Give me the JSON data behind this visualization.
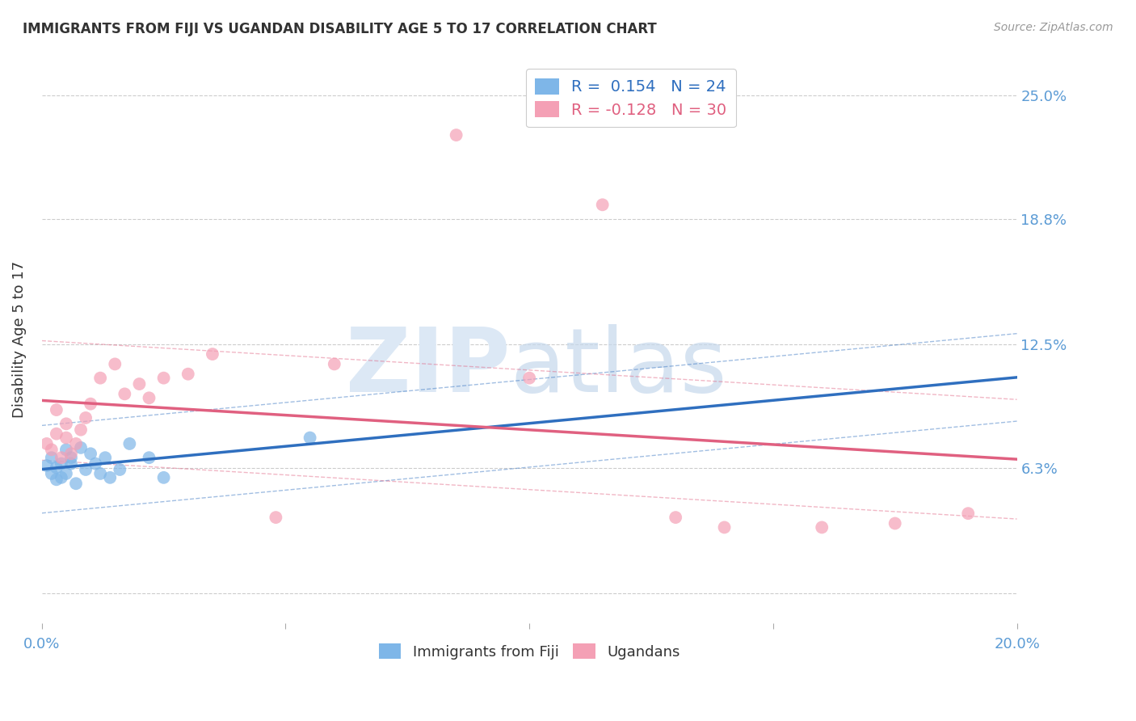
{
  "title": "IMMIGRANTS FROM FIJI VS UGANDAN DISABILITY AGE 5 TO 17 CORRELATION CHART",
  "source": "Source: ZipAtlas.com",
  "ylabel": "Disability Age 5 to 17",
  "xlim": [
    0.0,
    0.2
  ],
  "ylim": [
    -0.015,
    0.27
  ],
  "fiji_R": 0.154,
  "fiji_N": 24,
  "uganda_R": -0.128,
  "uganda_N": 30,
  "fiji_color": "#7EB6E8",
  "uganda_color": "#F4A0B5",
  "fiji_line_color": "#2F6FBF",
  "uganda_line_color": "#E06080",
  "background_color": "#FFFFFF",
  "ytick_positions": [
    0.0,
    0.063,
    0.125,
    0.188,
    0.25
  ],
  "ytick_labels": [
    "",
    "6.3%",
    "12.5%",
    "18.8%",
    "25.0%"
  ],
  "fiji_x": [
    0.001,
    0.002,
    0.002,
    0.003,
    0.003,
    0.004,
    0.004,
    0.005,
    0.005,
    0.006,
    0.006,
    0.007,
    0.008,
    0.009,
    0.01,
    0.011,
    0.012,
    0.013,
    0.014,
    0.016,
    0.018,
    0.022,
    0.025,
    0.055
  ],
  "fiji_y": [
    0.064,
    0.06,
    0.068,
    0.063,
    0.057,
    0.065,
    0.058,
    0.072,
    0.06,
    0.065,
    0.068,
    0.055,
    0.073,
    0.062,
    0.07,
    0.065,
    0.06,
    0.068,
    0.058,
    0.062,
    0.075,
    0.068,
    0.058,
    0.078
  ],
  "uganda_x": [
    0.001,
    0.002,
    0.003,
    0.003,
    0.004,
    0.005,
    0.005,
    0.006,
    0.007,
    0.008,
    0.009,
    0.01,
    0.012,
    0.015,
    0.017,
    0.02,
    0.022,
    0.025,
    0.03,
    0.035,
    0.048,
    0.06,
    0.085,
    0.1,
    0.115,
    0.13,
    0.14,
    0.16,
    0.175,
    0.19
  ],
  "uganda_y": [
    0.075,
    0.072,
    0.08,
    0.092,
    0.068,
    0.078,
    0.085,
    0.07,
    0.075,
    0.082,
    0.088,
    0.095,
    0.108,
    0.115,
    0.1,
    0.105,
    0.098,
    0.108,
    0.11,
    0.12,
    0.038,
    0.115,
    0.23,
    0.108,
    0.195,
    0.038,
    0.033,
    0.033,
    0.035,
    0.04
  ]
}
